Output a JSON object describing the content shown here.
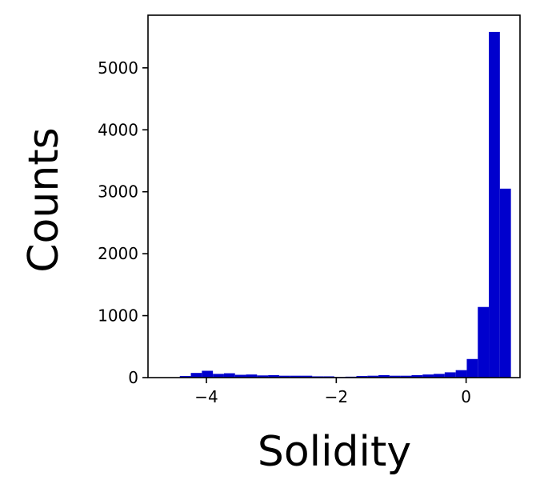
{
  "chart_data": {
    "type": "bar",
    "title": "",
    "xlabel": "Solidity",
    "ylabel": "Counts",
    "xlim": [
      -4.9,
      0.83
    ],
    "ylim": [
      0,
      5850
    ],
    "grid": false,
    "bar_color": "#0000cd",
    "bin_width": 0.17,
    "x_ticks": [
      {
        "value": -4,
        "label": "−4"
      },
      {
        "value": -2,
        "label": "−2"
      },
      {
        "value": 0,
        "label": "0"
      }
    ],
    "y_ticks": [
      {
        "value": 0,
        "label": "0"
      },
      {
        "value": 1000,
        "label": "1000"
      },
      {
        "value": 2000,
        "label": "2000"
      },
      {
        "value": 3000,
        "label": "3000"
      },
      {
        "value": 4000,
        "label": "4000"
      },
      {
        "value": 5000,
        "label": "5000"
      }
    ],
    "bins": [
      {
        "x": -4.58,
        "count": 5
      },
      {
        "x": -4.41,
        "count": 25
      },
      {
        "x": -4.24,
        "count": 75
      },
      {
        "x": -4.07,
        "count": 110
      },
      {
        "x": -3.9,
        "count": 60
      },
      {
        "x": -3.73,
        "count": 70
      },
      {
        "x": -3.56,
        "count": 45
      },
      {
        "x": -3.39,
        "count": 50
      },
      {
        "x": -3.22,
        "count": 35
      },
      {
        "x": -3.05,
        "count": 40
      },
      {
        "x": -2.88,
        "count": 30
      },
      {
        "x": -2.71,
        "count": 30
      },
      {
        "x": -2.54,
        "count": 30
      },
      {
        "x": -2.37,
        "count": 20
      },
      {
        "x": -2.2,
        "count": 20
      },
      {
        "x": -2.03,
        "count": 10
      },
      {
        "x": -1.86,
        "count": 15
      },
      {
        "x": -1.69,
        "count": 25
      },
      {
        "x": -1.52,
        "count": 30
      },
      {
        "x": -1.35,
        "count": 40
      },
      {
        "x": -1.18,
        "count": 30
      },
      {
        "x": -1.01,
        "count": 30
      },
      {
        "x": -0.84,
        "count": 40
      },
      {
        "x": -0.67,
        "count": 50
      },
      {
        "x": -0.5,
        "count": 60
      },
      {
        "x": -0.33,
        "count": 85
      },
      {
        "x": -0.16,
        "count": 120
      },
      {
        "x": 0.01,
        "count": 300
      },
      {
        "x": 0.18,
        "count": 1140
      },
      {
        "x": 0.35,
        "count": 5580
      },
      {
        "x": 0.52,
        "count": 3050
      }
    ]
  }
}
